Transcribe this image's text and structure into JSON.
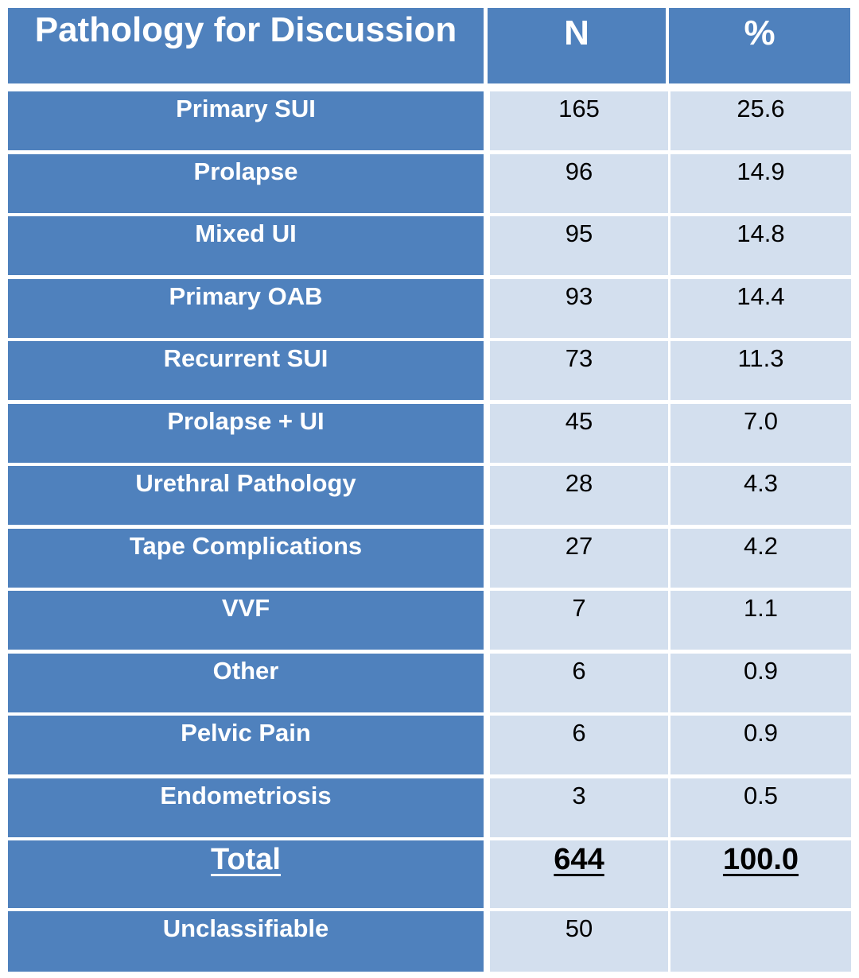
{
  "header": {
    "pathology": "Pathology for Discussion",
    "n": "N",
    "pct": "%"
  },
  "rows": [
    {
      "label": "Primary SUI",
      "n": "165",
      "pct": "25.6"
    },
    {
      "label": "Prolapse",
      "n": "96",
      "pct": "14.9"
    },
    {
      "label": "Mixed UI",
      "n": "95",
      "pct": "14.8"
    },
    {
      "label": "Primary OAB",
      "n": "93",
      "pct": "14.4"
    },
    {
      "label": "Recurrent SUI",
      "n": "73",
      "pct": "11.3"
    },
    {
      "label": "Prolapse + UI",
      "n": "45",
      "pct": "7.0"
    },
    {
      "label": "Urethral Pathology",
      "n": "28",
      "pct": "4.3"
    },
    {
      "label": "Tape Complications",
      "n": "27",
      "pct": "4.2"
    },
    {
      "label": "VVF",
      "n": "7",
      "pct": "1.1"
    },
    {
      "label": "Other",
      "n": "6",
      "pct": "0.9"
    },
    {
      "label": "Pelvic Pain",
      "n": "6",
      "pct": "0.9"
    },
    {
      "label": "Endometriosis",
      "n": "3",
      "pct": "0.5"
    }
  ],
  "total": {
    "label": "Total",
    "n": "644",
    "pct": "100.0"
  },
  "unclassifiable": {
    "label": "Unclassifiable",
    "n": "50",
    "pct": ""
  },
  "colors": {
    "header_bg": "#4f81bd",
    "value_bg": "#d3dfee",
    "header_text": "#ffffff"
  }
}
